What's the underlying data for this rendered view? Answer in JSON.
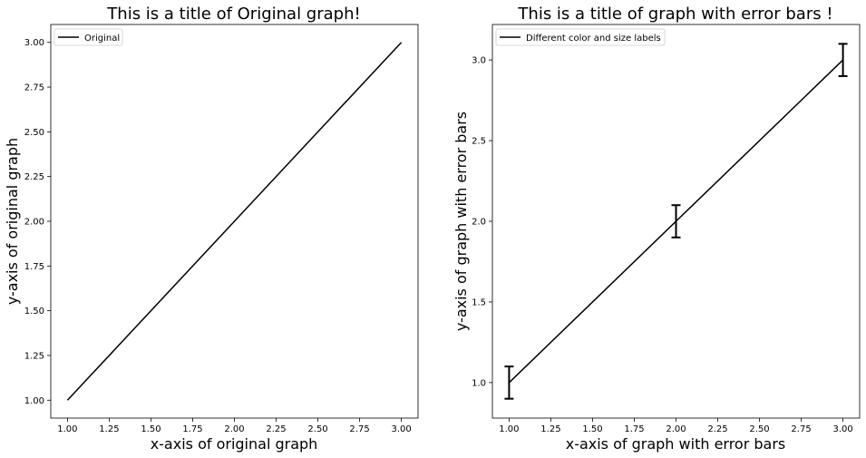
{
  "chart_data": [
    {
      "type": "line",
      "title": "This is a title of Original graph!",
      "xlabel": "x-axis of original graph",
      "ylabel": "y-axis of original graph",
      "xlim": [
        0.9,
        3.1
      ],
      "ylim": [
        0.9,
        3.1
      ],
      "xticks": [
        "1.00",
        "1.25",
        "1.50",
        "1.75",
        "2.00",
        "2.25",
        "2.50",
        "2.75",
        "3.00"
      ],
      "yticks": [
        "1.00",
        "1.25",
        "1.50",
        "1.75",
        "2.00",
        "2.25",
        "2.50",
        "2.75",
        "3.00"
      ],
      "legend_position": "top-left",
      "grid": false,
      "series": [
        {
          "name": "Original",
          "color": "#000000",
          "x": [
            1,
            2,
            3
          ],
          "y": [
            1,
            2,
            3
          ]
        }
      ]
    },
    {
      "type": "line",
      "title": "This is a title of graph with error bars !",
      "xlabel": "x-axis of graph with error bars",
      "ylabel": "y-axis of graph with error bars",
      "xlim": [
        0.9,
        3.1
      ],
      "ylim": [
        0.78,
        3.22
      ],
      "xticks": [
        "1.00",
        "1.25",
        "1.50",
        "1.75",
        "2.00",
        "2.25",
        "2.50",
        "2.75",
        "3.00"
      ],
      "yticks": [
        "1.0",
        "1.5",
        "2.0",
        "2.5",
        "3.0"
      ],
      "legend_position": "top-left",
      "grid": false,
      "series": [
        {
          "name": "Different color and size labels",
          "color": "#000000",
          "x": [
            1,
            2,
            3
          ],
          "y": [
            1,
            2,
            3
          ],
          "yerr": [
            0.1,
            0.1,
            0.1
          ]
        }
      ]
    }
  ]
}
